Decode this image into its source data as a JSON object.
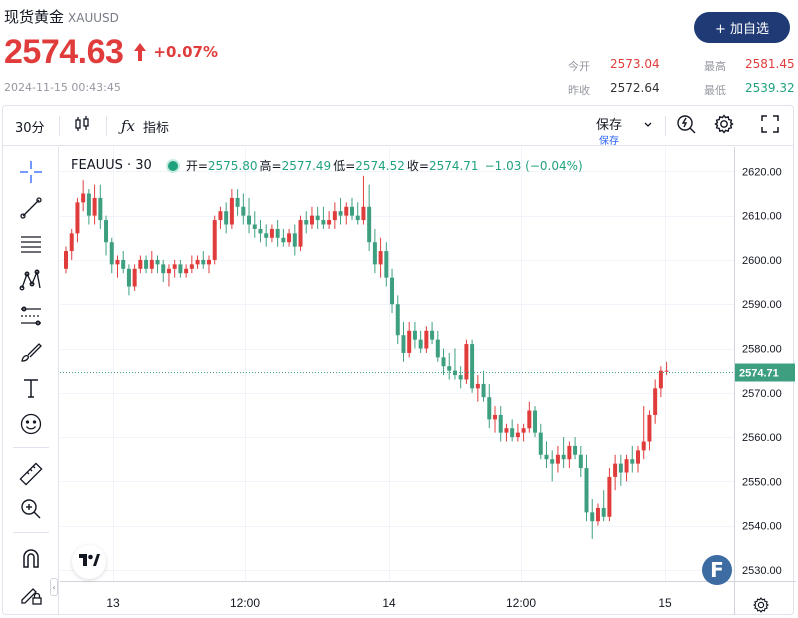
{
  "header": {
    "title": "现货黄金",
    "symbol": "XAUUSD",
    "price": "2574.63",
    "change": "+0.07%",
    "timestamp": "2024-11-15 00:43:45",
    "add_button": "+ 加自选"
  },
  "stats": {
    "open_label": "今开",
    "open_value": "2573.04",
    "prev_label": "昨收",
    "prev_value": "2572.64",
    "high_label": "最高",
    "high_value": "2581.45",
    "low_label": "最低",
    "low_value": "2539.32"
  },
  "toolbar": {
    "interval": "30分",
    "indicators": "指标",
    "save_label": "保存",
    "save_sub": "保存"
  },
  "legend": {
    "name": "FEAUUS · 30",
    "open_k": "开=",
    "open_v": "2575.80",
    "high_k": "高=",
    "high_v": "2577.49",
    "low_k": "低=",
    "low_v": "2574.52",
    "close_k": "收=",
    "close_v": "2574.71",
    "chg": "−1.03 (−0.04%)"
  },
  "colors": {
    "up": "#e03c3c",
    "down": "#3d9f80",
    "accent": "#1f3a74",
    "link": "#2962ff"
  },
  "chart_data": {
    "type": "candlestick",
    "title": "FEAUUS · 30",
    "x_tick_labels": [
      "13",
      "12:00",
      "14",
      "12:00",
      "15"
    ],
    "y_ticks": [
      "2620.00",
      "2610.00",
      "2600.00",
      "2590.00",
      "2580.00",
      "2570.00",
      "2560.00",
      "2550.00",
      "2540.00",
      "2530.00"
    ],
    "ylim": [
      2527.5,
      2625.5
    ],
    "last_price_label": "2574.71",
    "grid": true,
    "candles": [
      [
        2598,
        2603,
        2597,
        2602
      ],
      [
        2602,
        2607,
        2600,
        2606
      ],
      [
        2606,
        2614,
        2604,
        2613
      ],
      [
        2613,
        2618,
        2611,
        2615
      ],
      [
        2615,
        2616,
        2608,
        2610
      ],
      [
        2610,
        2617,
        2608,
        2614
      ],
      [
        2614,
        2617,
        2607,
        2609
      ],
      [
        2609,
        2610,
        2601,
        2604
      ],
      [
        2604,
        2605,
        2597,
        2599
      ],
      [
        2599,
        2601,
        2596,
        2600
      ],
      [
        2600,
        2602,
        2597,
        2598
      ],
      [
        2598,
        2599,
        2592,
        2594
      ],
      [
        2594,
        2599,
        2593,
        2598
      ],
      [
        2598,
        2601,
        2597,
        2600
      ],
      [
        2600,
        2601,
        2597,
        2598
      ],
      [
        2598,
        2602,
        2597,
        2600
      ],
      [
        2600,
        2601,
        2597,
        2599
      ],
      [
        2599,
        2600,
        2595,
        2597
      ],
      [
        2597,
        2599,
        2594,
        2598
      ],
      [
        2598,
        2600,
        2596,
        2599
      ],
      [
        2599,
        2600,
        2596,
        2597
      ],
      [
        2597,
        2599,
        2596,
        2598
      ],
      [
        2598,
        2601,
        2597,
        2599
      ],
      [
        2599,
        2601,
        2598,
        2600
      ],
      [
        2600,
        2602,
        2598,
        2599
      ],
      [
        2599,
        2601,
        2597,
        2600
      ],
      [
        2600,
        2610,
        2599,
        2609
      ],
      [
        2609,
        2612,
        2607,
        2611
      ],
      [
        2611,
        2613,
        2606,
        2608
      ],
      [
        2608,
        2616,
        2607,
        2614
      ],
      [
        2614,
        2616,
        2610,
        2612
      ],
      [
        2612,
        2615,
        2608,
        2610
      ],
      [
        2610,
        2614,
        2606,
        2608
      ],
      [
        2608,
        2611,
        2605,
        2607
      ],
      [
        2607,
        2609,
        2604,
        2606
      ],
      [
        2606,
        2608,
        2603,
        2605
      ],
      [
        2605,
        2608,
        2604,
        2607
      ],
      [
        2607,
        2609,
        2603,
        2605
      ],
      [
        2605,
        2607,
        2603,
        2604
      ],
      [
        2604,
        2607,
        2603,
        2606
      ],
      [
        2606,
        2608,
        2601,
        2603
      ],
      [
        2603,
        2610,
        2602,
        2609
      ],
      [
        2609,
        2611,
        2606,
        2608
      ],
      [
        2608,
        2612,
        2607,
        2610
      ],
      [
        2610,
        2612,
        2607,
        2609
      ],
      [
        2609,
        2612,
        2607,
        2608
      ],
      [
        2608,
        2611,
        2607,
        2609
      ],
      [
        2609,
        2613,
        2607,
        2611
      ],
      [
        2611,
        2614,
        2608,
        2610
      ],
      [
        2610,
        2613,
        2608,
        2612
      ],
      [
        2612,
        2614,
        2609,
        2610
      ],
      [
        2610,
        2613,
        2608,
        2609
      ],
      [
        2609,
        2619,
        2608,
        2612
      ],
      [
        2612,
        2617,
        2602,
        2604
      ],
      [
        2604,
        2607,
        2597,
        2599
      ],
      [
        2599,
        2605,
        2596,
        2602
      ],
      [
        2602,
        2604,
        2594,
        2596
      ],
      [
        2596,
        2598,
        2588,
        2590
      ],
      [
        2590,
        2592,
        2581,
        2583
      ],
      [
        2583,
        2586,
        2577,
        2579
      ],
      [
        2579,
        2586,
        2578,
        2584
      ],
      [
        2584,
        2586,
        2580,
        2582
      ],
      [
        2582,
        2584,
        2579,
        2580
      ],
      [
        2580,
        2585,
        2579,
        2584
      ],
      [
        2584,
        2586,
        2581,
        2582
      ],
      [
        2582,
        2584,
        2577,
        2578
      ],
      [
        2578,
        2580,
        2574,
        2576
      ],
      [
        2576,
        2579,
        2573,
        2575
      ],
      [
        2575,
        2580,
        2573,
        2574
      ],
      [
        2574,
        2576,
        2571,
        2573
      ],
      [
        2573,
        2582,
        2572,
        2581
      ],
      [
        2581,
        2582,
        2570,
        2571
      ],
      [
        2571,
        2574,
        2568,
        2572
      ],
      [
        2572,
        2575,
        2568,
        2569
      ],
      [
        2569,
        2572,
        2562,
        2564
      ],
      [
        2564,
        2567,
        2561,
        2565
      ],
      [
        2565,
        2567,
        2559,
        2561
      ],
      [
        2561,
        2563,
        2559,
        2562
      ],
      [
        2562,
        2564,
        2559,
        2560
      ],
      [
        2560,
        2563,
        2559,
        2561
      ],
      [
        2561,
        2563,
        2559,
        2562
      ],
      [
        2562,
        2568,
        2561,
        2566
      ],
      [
        2566,
        2567,
        2560,
        2561
      ],
      [
        2561,
        2563,
        2555,
        2556
      ],
      [
        2556,
        2559,
        2553,
        2555
      ],
      [
        2555,
        2557,
        2550,
        2554
      ],
      [
        2554,
        2558,
        2552,
        2556
      ],
      [
        2556,
        2560,
        2553,
        2555
      ],
      [
        2555,
        2559,
        2553,
        2558
      ],
      [
        2558,
        2560,
        2555,
        2556
      ],
      [
        2556,
        2558,
        2551,
        2553
      ],
      [
        2553,
        2556,
        2541,
        2543
      ],
      [
        2543,
        2546,
        2537,
        2541
      ],
      [
        2541,
        2545,
        2540,
        2544
      ],
      [
        2544,
        2548,
        2541,
        2542
      ],
      [
        2542,
        2553,
        2541,
        2551
      ],
      [
        2551,
        2556,
        2548,
        2554
      ],
      [
        2554,
        2556,
        2549,
        2552
      ],
      [
        2552,
        2556,
        2550,
        2555
      ],
      [
        2555,
        2558,
        2552,
        2554
      ],
      [
        2554,
        2558,
        2552,
        2557
      ],
      [
        2557,
        2567,
        2555,
        2559
      ],
      [
        2559,
        2566,
        2557,
        2565
      ],
      [
        2565,
        2573,
        2563,
        2571
      ],
      [
        2571,
        2576,
        2569,
        2575
      ],
      [
        2575,
        2577,
        2574,
        2575
      ]
    ]
  }
}
